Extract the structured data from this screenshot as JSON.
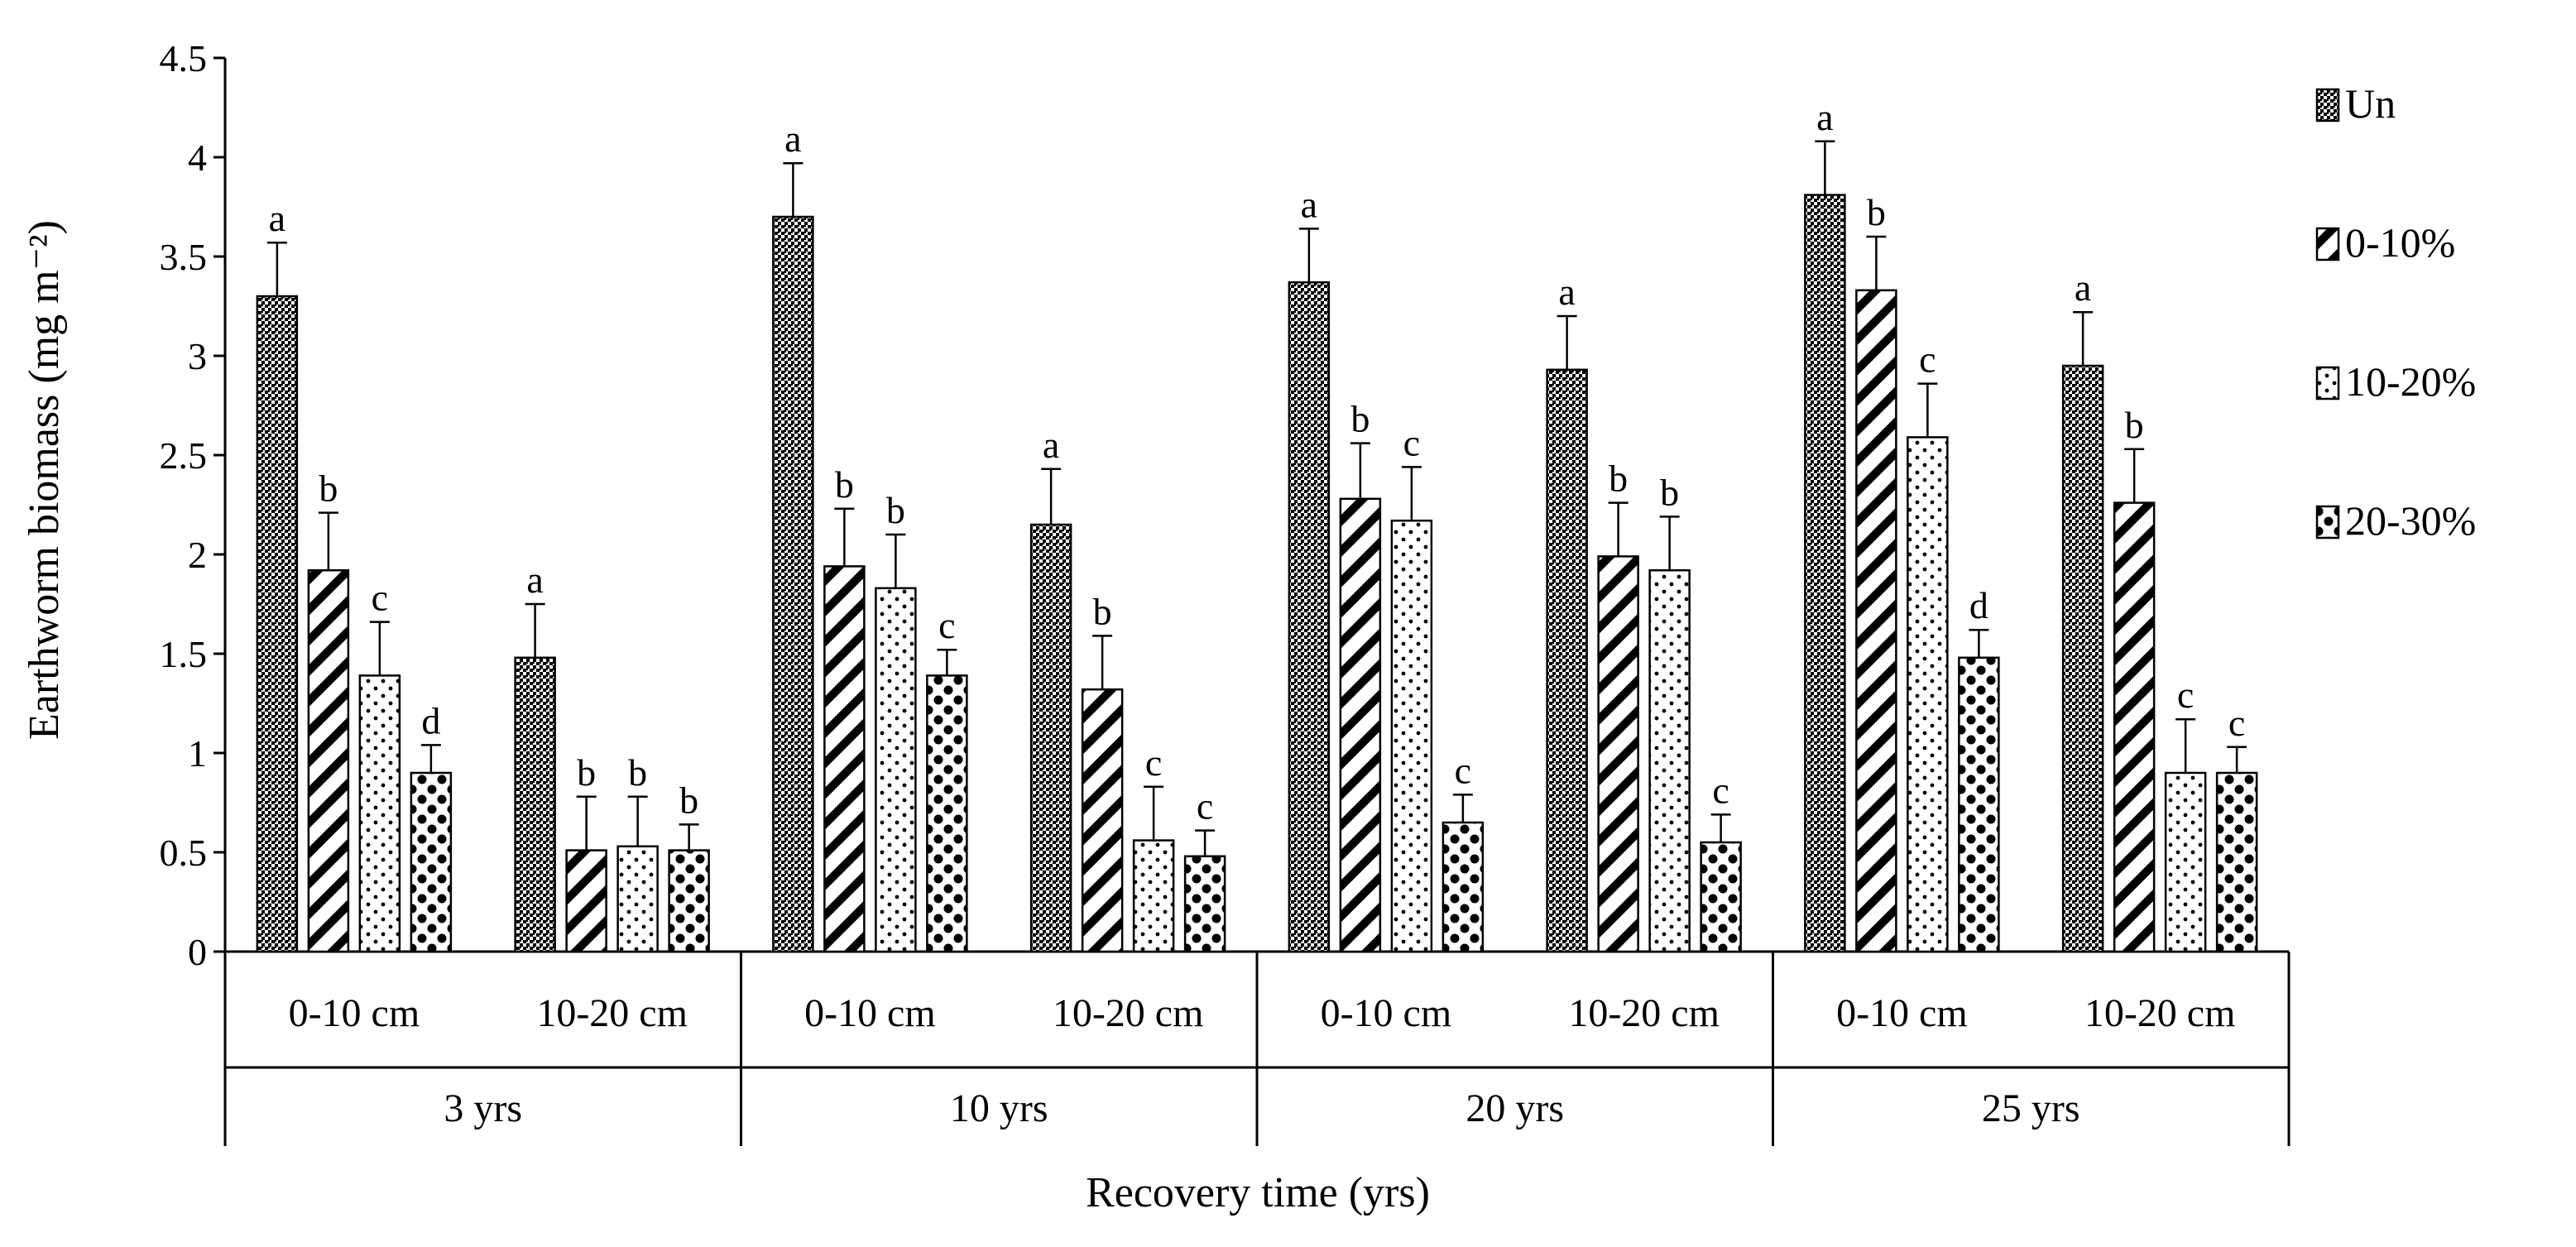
{
  "chart_data": {
    "type": "bar",
    "ylabel": "Earthworm biomass (mg m⁻²)",
    "xlabel": "Recovery time (yrs)",
    "ylim": [
      0,
      4.5
    ],
    "yticks": [
      "0",
      "0.5",
      "1",
      "1.5",
      "2",
      "2.5",
      "3",
      "3.5",
      "4",
      "4.5"
    ],
    "legend_position": "right",
    "groups": [
      {
        "label": "3 yrs",
        "subgroups": [
          "0-10 cm",
          "10-20 cm"
        ]
      },
      {
        "label": "10 yrs",
        "subgroups": [
          "0-10 cm",
          "10-20 cm"
        ]
      },
      {
        "label": "20 yrs",
        "subgroups": [
          "0-10 cm",
          "10-20 cm"
        ]
      },
      {
        "label": "25 yrs",
        "subgroups": [
          "0-10 cm",
          "10-20 cm"
        ]
      }
    ],
    "categories": [
      "3 yrs 0-10 cm",
      "3 yrs 10-20 cm",
      "10 yrs 0-10 cm",
      "10 yrs 10-20 cm",
      "20 yrs 0-10 cm",
      "20 yrs 10-20 cm",
      "25 yrs 0-10 cm",
      "25 yrs 10-20 cm"
    ],
    "series": [
      {
        "name": "Un",
        "pattern": "dense-dots",
        "values": [
          3.3,
          1.48,
          3.7,
          2.15,
          3.37,
          2.93,
          3.81,
          2.95
        ],
        "errors": [
          0.27,
          0.27,
          0.27,
          0.28,
          0.27,
          0.27,
          0.27,
          0.27
        ],
        "labels": [
          "a",
          "a",
          "a",
          "a",
          "a",
          "a",
          "a",
          "a"
        ]
      },
      {
        "name": "0-10%",
        "pattern": "diagonal-stripes",
        "values": [
          1.92,
          0.51,
          1.94,
          1.32,
          2.28,
          1.99,
          3.33,
          2.26
        ],
        "errors": [
          0.29,
          0.27,
          0.29,
          0.27,
          0.28,
          0.27,
          0.27,
          0.27
        ],
        "labels": [
          "b",
          "b",
          "b",
          "b",
          "b",
          "b",
          "b",
          "b"
        ]
      },
      {
        "name": "10-20%",
        "pattern": "small-dots",
        "values": [
          1.39,
          0.53,
          1.83,
          0.56,
          2.17,
          1.92,
          2.59,
          0.9
        ],
        "errors": [
          0.27,
          0.25,
          0.27,
          0.27,
          0.27,
          0.27,
          0.27,
          0.27
        ],
        "labels": [
          "c",
          "b",
          "b",
          "c",
          "c",
          "b",
          "c",
          "c"
        ]
      },
      {
        "name": "20-30%",
        "pattern": "large-dots",
        "values": [
          0.9,
          0.51,
          1.39,
          0.48,
          0.65,
          0.55,
          1.48,
          0.9
        ],
        "errors": [
          0.14,
          0.13,
          0.13,
          0.13,
          0.14,
          0.14,
          0.14,
          0.13
        ],
        "labels": [
          "d",
          "b",
          "c",
          "c",
          "c",
          "c",
          "d",
          "c"
        ]
      }
    ]
  }
}
